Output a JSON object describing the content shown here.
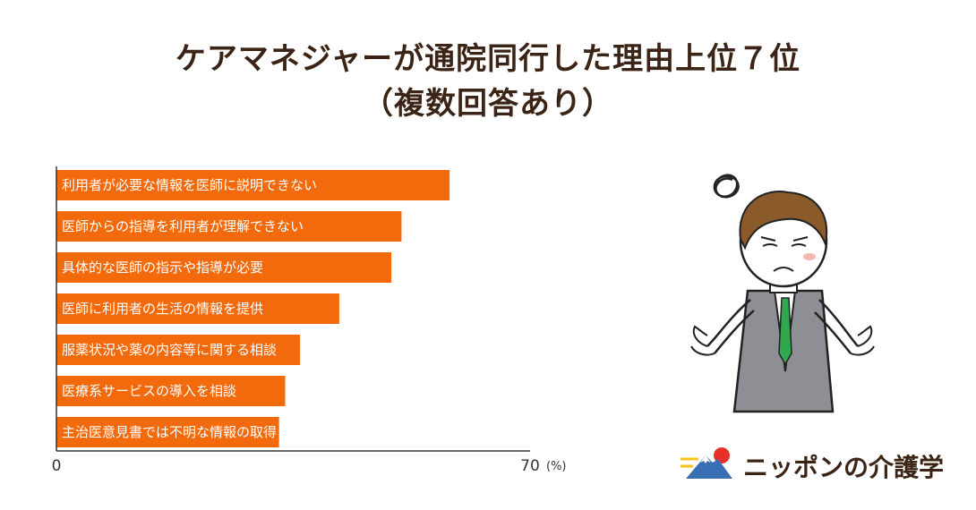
{
  "title": {
    "line1": "ケアマネジャーが通院同行した理由上位７位",
    "line2": "（複数回答あり）"
  },
  "chart_data": {
    "type": "bar",
    "orientation": "horizontal",
    "categories": [
      "利用者が必要な情報を医師に説明できない",
      "医師からの指導を利用者が理解できない",
      "具体的な医師の指示や指導が必要",
      "医師に利用者の生活の情報を提供",
      "服薬状況や薬の内容等に関する相談",
      "医療系サービスの導入を相談",
      "主治医意見書では不明な情報の取得"
    ],
    "values": [
      58.1,
      51.0,
      49.5,
      41.8,
      36.0,
      33.8,
      32.9
    ],
    "xlim": [
      0,
      70
    ],
    "ticks": [
      "0",
      "70"
    ],
    "unit": "(%)",
    "bar_color": "#f26a0c",
    "grid": false
  },
  "brand": {
    "logo_text": "ニッポンの介護学"
  }
}
